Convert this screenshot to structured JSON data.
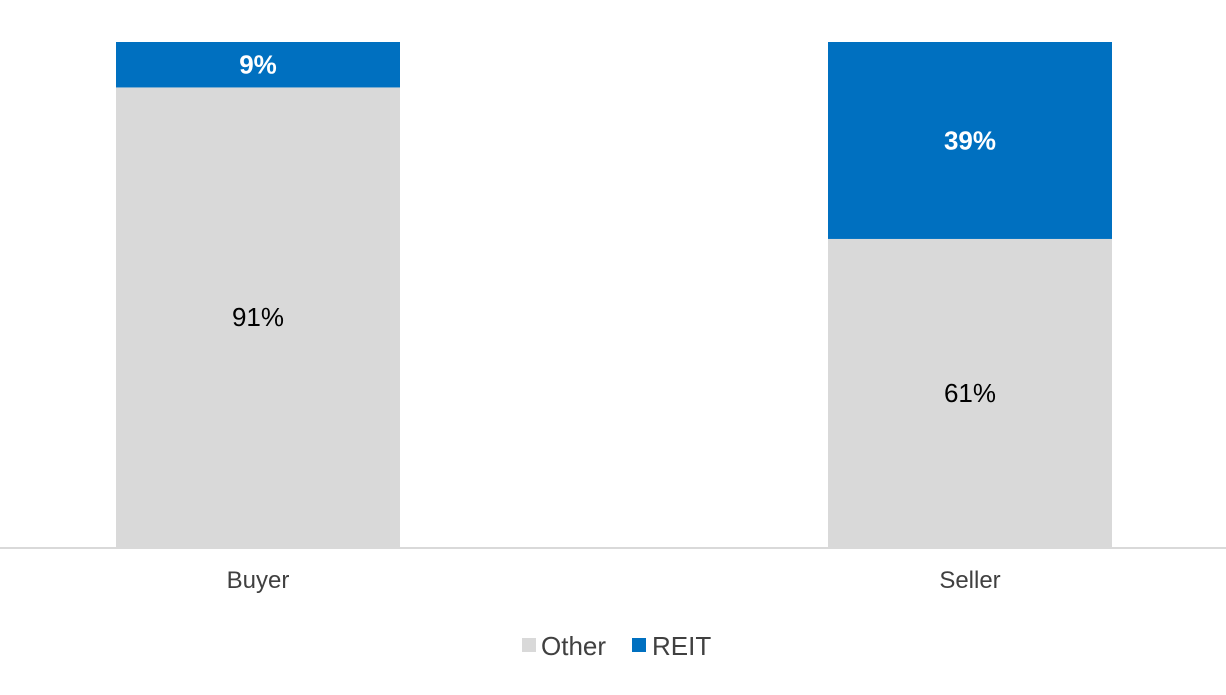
{
  "chart_data": {
    "type": "bar",
    "stacked": true,
    "percent": true,
    "categories": [
      "Buyer",
      "Seller"
    ],
    "series": [
      {
        "name": "Other",
        "values": [
          91,
          61
        ],
        "labels": [
          "91%",
          "61%"
        ],
        "color": "#d9d9d9",
        "label_color": "#000000",
        "label_bold": false
      },
      {
        "name": "REIT",
        "values": [
          9,
          39
        ],
        "labels": [
          "9%",
          "39%"
        ],
        "color": "#0070c0",
        "label_color": "#ffffff",
        "label_bold": true
      }
    ],
    "title": "",
    "xlabel": "",
    "ylabel": "",
    "ylim": [
      0,
      100
    ],
    "grid": false,
    "axis_color": "#d9d9d9",
    "legend_position": "bottom"
  }
}
